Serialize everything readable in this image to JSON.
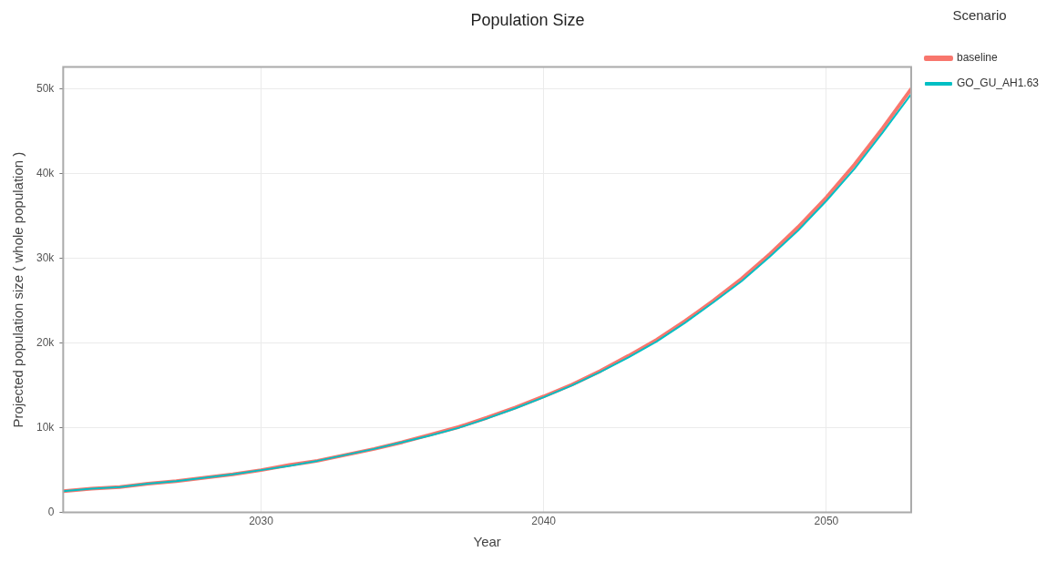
{
  "chart_data": {
    "type": "line",
    "title": "Population Size",
    "xlabel": "Year",
    "ylabel": "Projected population size ( whole population )",
    "legend_title": "Scenario",
    "x": [
      2023,
      2024,
      2025,
      2026,
      2027,
      2028,
      2029,
      2030,
      2031,
      2032,
      2033,
      2034,
      2035,
      2036,
      2037,
      2038,
      2039,
      2040,
      2041,
      2042,
      2043,
      2044,
      2045,
      2046,
      2047,
      2048,
      2049,
      2050,
      2051,
      2052,
      2053
    ],
    "series": [
      {
        "name": "baseline",
        "color": "#f8766d",
        "values": [
          2500,
          2800,
          3000,
          3400,
          3700,
          4100,
          4500,
          5000,
          5600,
          6100,
          6800,
          7500,
          8300,
          9200,
          10100,
          11200,
          12400,
          13700,
          15100,
          16700,
          18500,
          20400,
          22600,
          25000,
          27600,
          30500,
          33700,
          37200,
          41100,
          45400,
          50000
        ]
      },
      {
        "name": "GO_GU_AH1.63",
        "color": "#00bfc4",
        "values": [
          2500,
          2800,
          3000,
          3400,
          3700,
          4100,
          4500,
          5000,
          5500,
          6100,
          6800,
          7500,
          8300,
          9100,
          10000,
          11100,
          12300,
          13600,
          15000,
          16600,
          18300,
          20200,
          22400,
          24800,
          27300,
          30200,
          33300,
          36800,
          40600,
          44900,
          49400
        ]
      }
    ],
    "xlim": [
      2023,
      2053
    ],
    "xticks": [
      2030,
      2040,
      2050
    ],
    "ylim": [
      0,
      52600
    ],
    "yticks": [
      0,
      {
        "value": 10000,
        "label": "10k"
      },
      {
        "value": 20000,
        "label": "20k"
      },
      {
        "value": 30000,
        "label": "30k"
      },
      {
        "value": 40000,
        "label": "40k"
      },
      {
        "value": 50000,
        "label": "50k"
      }
    ],
    "grid": true,
    "legend": "right",
    "marker": "none",
    "line_style": "solid"
  }
}
